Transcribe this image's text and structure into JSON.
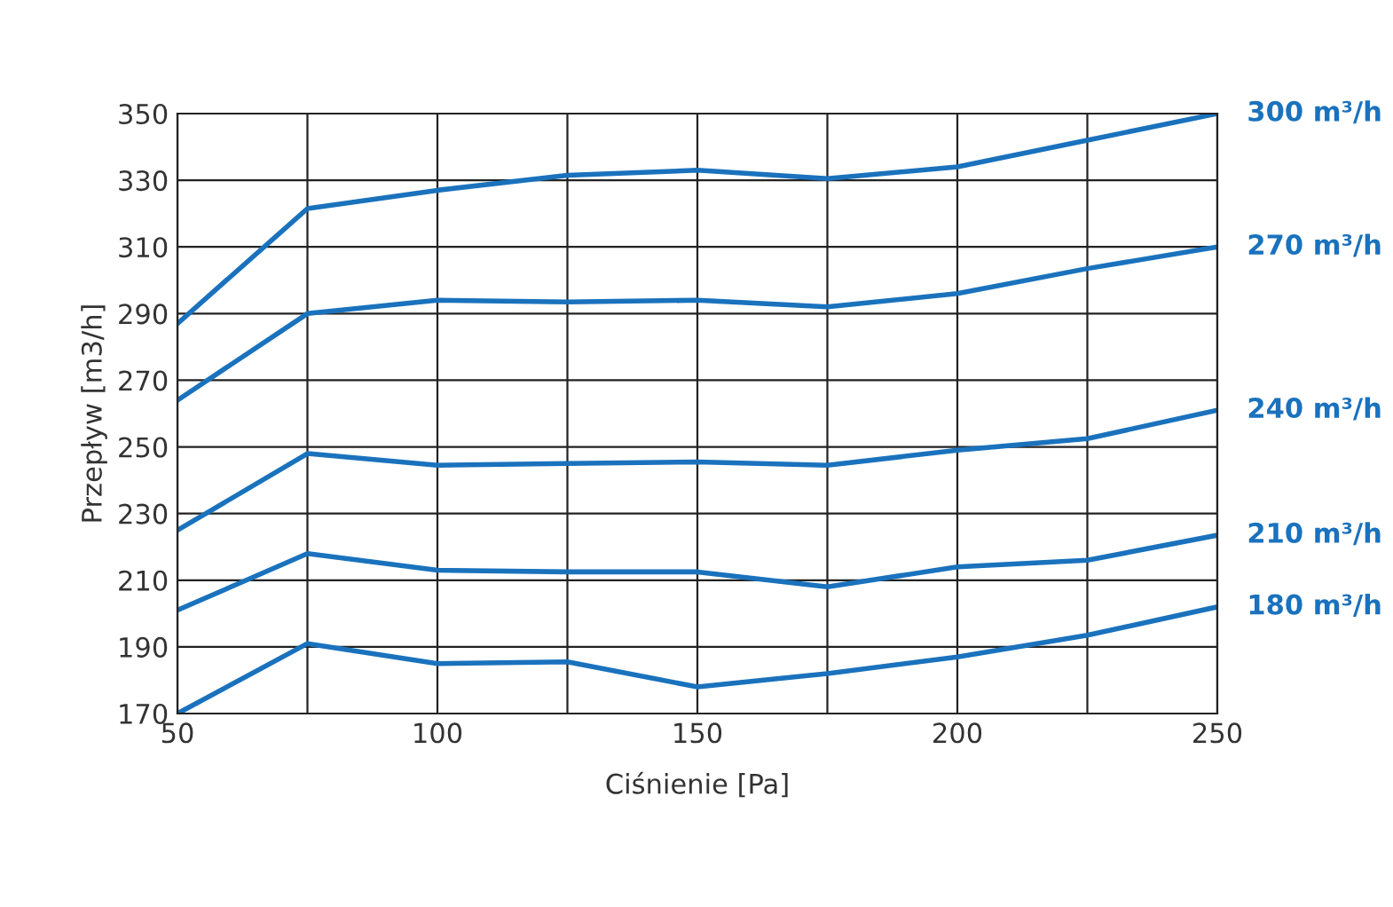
{
  "chart_data": {
    "type": "line",
    "xlabel": "Ciśnienie [Pa]",
    "ylabel": "Przepływ [m3/h]",
    "x": [
      50,
      75,
      100,
      125,
      150,
      175,
      200,
      225,
      250
    ],
    "xlim": [
      50,
      250
    ],
    "xticks": [
      50,
      100,
      150,
      200,
      250
    ],
    "ylim": [
      170,
      350
    ],
    "yticks": [
      170,
      190,
      210,
      230,
      250,
      270,
      290,
      310,
      330,
      350
    ],
    "grid": true,
    "marker": "none",
    "line_style": "solid",
    "legend": false,
    "series": [
      {
        "name": "300 m³/h",
        "color": "#1a72bd",
        "values": [
          287,
          321.5,
          327,
          331.5,
          333,
          330.5,
          334,
          342,
          350
        ]
      },
      {
        "name": "270 m³/h",
        "color": "#1a72bd",
        "values": [
          264,
          290,
          294,
          293.5,
          294,
          292,
          296,
          303.5,
          310
        ]
      },
      {
        "name": "240 m³/h",
        "color": "#1a72bd",
        "values": [
          225,
          248,
          244.5,
          245,
          245.5,
          244.5,
          249,
          252.5,
          261
        ]
      },
      {
        "name": "210 m³/h",
        "color": "#1a72bd",
        "values": [
          201,
          218,
          213,
          212.5,
          212.5,
          208,
          214,
          216,
          223.5
        ]
      },
      {
        "name": "180 m³/h",
        "color": "#1a72bd",
        "values": [
          170,
          191,
          185,
          185.5,
          178,
          182,
          187,
          193.5,
          202
        ]
      }
    ]
  }
}
